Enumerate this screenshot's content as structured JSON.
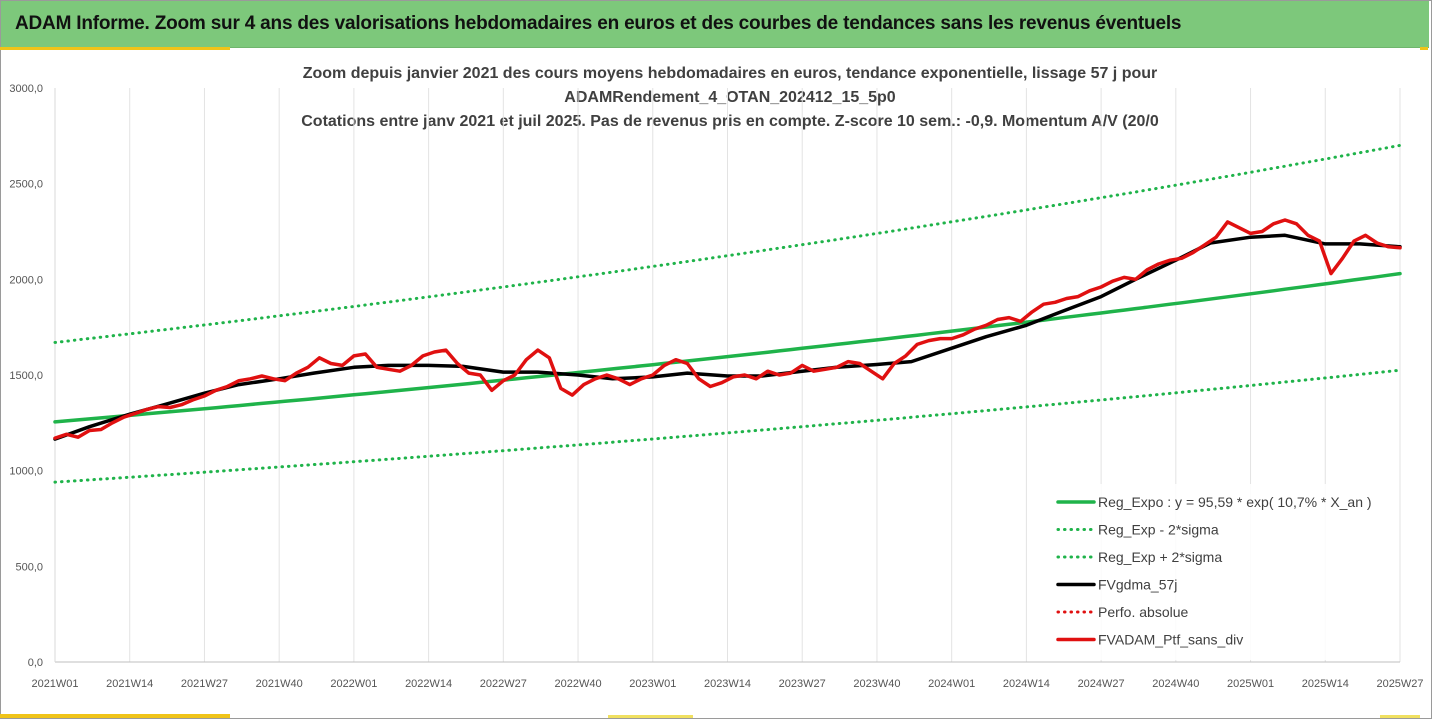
{
  "header": {
    "title": "ADAM Informe. Zoom sur 4 ans des valorisations hebdomadaires en euros et des courbes de tendances sans les revenus éventuels"
  },
  "chart_data": {
    "type": "line",
    "title_lines": [
      "Zoom depuis janvier 2021 des cours moyens hebdomadaires  en euros, tendance exponentielle, lissage 57 j pour",
      "ADAMRendement_4_OTAN_202412_15_5p0",
      "Cotations entre janv 2021 et juil 2025. Pas de revenus pris en compte. Z-score 10 sem.: -0,9. Momentum A/V (20/0"
    ],
    "xlabel": "",
    "ylabel": "",
    "ylim": [
      0,
      3000
    ],
    "y_ticks": [
      "0,0",
      "500,0",
      "1000,0",
      "1500,0",
      "2000,0",
      "2500,0",
      "3000,0"
    ],
    "x_ticks": [
      "2021W01",
      "2021W14",
      "2021W27",
      "2021W40",
      "2022W01",
      "2022W14",
      "2022W27",
      "2022W40",
      "2023W01",
      "2023W14",
      "2023W27",
      "2023W40",
      "2024W01",
      "2024W14",
      "2024W27",
      "2024W40",
      "2025W01",
      "2025W14",
      "2025W27"
    ],
    "grid": "vertical",
    "legend_position": "bottom-right",
    "series": [
      {
        "name": "Reg_Expo : y = 95,59 * exp( 10,7% *  X_an )",
        "color": "#1fb34a",
        "style": "solid",
        "x": [
          0,
          234
        ],
        "values": [
          1255,
          2030
        ]
      },
      {
        "name": "Reg_Exp - 2*sigma",
        "color": "#1fb34a",
        "style": "dotted",
        "x": [
          0,
          234
        ],
        "values": [
          940,
          1525
        ]
      },
      {
        "name": "Reg_Exp + 2*sigma",
        "color": "#1fb34a",
        "style": "dotted",
        "x": [
          0,
          234
        ],
        "values": [
          1670,
          2700
        ]
      },
      {
        "name": "FVgdma_57j",
        "color": "#000000",
        "style": "solid",
        "x": [
          0,
          6,
          13,
          19,
          26,
          32,
          39,
          45,
          52,
          58,
          65,
          71,
          78,
          84,
          91,
          97,
          104,
          110,
          117,
          123,
          130,
          136,
          143,
          149,
          156,
          162,
          169,
          175,
          182,
          188,
          195,
          201,
          208,
          214,
          221,
          227,
          234
        ],
        "values": [
          1165,
          1230,
          1295,
          1345,
          1405,
          1450,
          1480,
          1510,
          1540,
          1550,
          1550,
          1545,
          1515,
          1515,
          1500,
          1480,
          1490,
          1510,
          1495,
          1495,
          1520,
          1540,
          1555,
          1570,
          1640,
          1700,
          1760,
          1830,
          1910,
          2000,
          2100,
          2190,
          2220,
          2230,
          2185,
          2185,
          2170
        ]
      },
      {
        "name": "Perfo. absolue",
        "color": "#e01010",
        "style": "dotted",
        "x": [],
        "values": []
      },
      {
        "name": "FVADAM_Ptf_sans_div",
        "color": "#e01010",
        "style": "solid",
        "x": [
          0,
          2,
          4,
          6,
          8,
          10,
          12,
          14,
          16,
          18,
          20,
          22,
          24,
          26,
          28,
          30,
          32,
          34,
          36,
          38,
          40,
          42,
          44,
          46,
          48,
          50,
          52,
          54,
          56,
          58,
          60,
          62,
          64,
          66,
          68,
          70,
          72,
          74,
          76,
          78,
          80,
          82,
          84,
          86,
          88,
          90,
          92,
          94,
          96,
          98,
          100,
          102,
          104,
          106,
          108,
          110,
          112,
          114,
          116,
          118,
          120,
          122,
          124,
          126,
          128,
          130,
          132,
          134,
          136,
          138,
          140,
          142,
          144,
          146,
          148,
          150,
          152,
          154,
          156,
          158,
          160,
          162,
          164,
          166,
          168,
          170,
          172,
          174,
          176,
          178,
          180,
          182,
          184,
          186,
          188,
          190,
          192,
          194,
          196,
          198,
          200,
          202,
          204,
          206,
          208,
          210,
          212,
          214,
          216,
          218,
          220,
          222,
          224,
          226,
          228,
          230,
          232,
          234
        ],
        "values": [
          1170,
          1190,
          1175,
          1210,
          1215,
          1250,
          1280,
          1300,
          1320,
          1335,
          1330,
          1345,
          1370,
          1390,
          1420,
          1440,
          1470,
          1480,
          1495,
          1480,
          1470,
          1510,
          1540,
          1590,
          1560,
          1550,
          1600,
          1610,
          1540,
          1530,
          1520,
          1550,
          1600,
          1620,
          1630,
          1560,
          1510,
          1500,
          1420,
          1470,
          1500,
          1580,
          1630,
          1590,
          1430,
          1395,
          1450,
          1480,
          1500,
          1480,
          1450,
          1480,
          1500,
          1550,
          1580,
          1560,
          1480,
          1440,
          1460,
          1490,
          1500,
          1480,
          1520,
          1500,
          1510,
          1550,
          1520,
          1530,
          1540,
          1570,
          1560,
          1520,
          1480,
          1560,
          1600,
          1660,
          1680,
          1690,
          1690,
          1710,
          1740,
          1760,
          1790,
          1800,
          1780,
          1830,
          1870,
          1880,
          1900,
          1910,
          1940,
          1960,
          1990,
          2010,
          2000,
          2050,
          2080,
          2100,
          2110,
          2140,
          2180,
          2220,
          2300,
          2270,
          2240,
          2250,
          2290,
          2310,
          2290,
          2230,
          2200,
          2030,
          2110,
          2200,
          2230,
          2190,
          2170,
          2165
        ]
      }
    ]
  }
}
